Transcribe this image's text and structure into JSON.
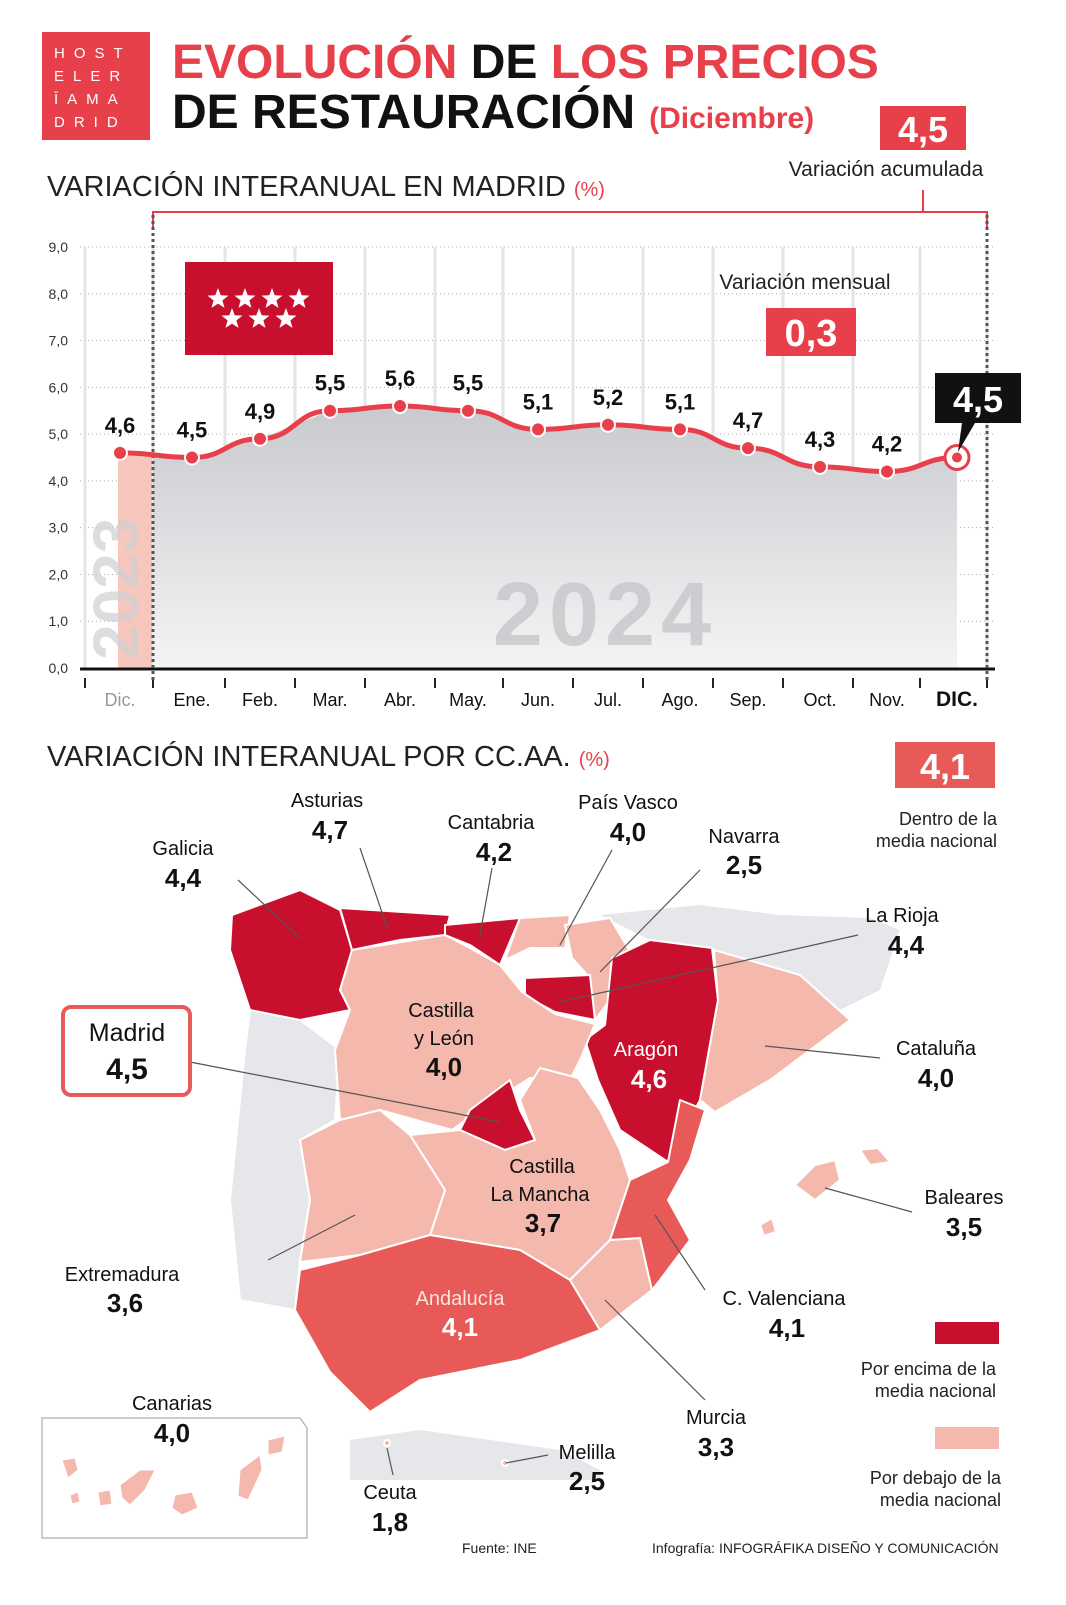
{
  "logo": {
    "lines": [
      "HOST",
      "ELER",
      "ĪAMA",
      "DRID"
    ],
    "brand": "Hostelería Madrid"
  },
  "header": {
    "title_1a": "EVOLUCIÓN",
    "title_1b": "DE",
    "title_1c": "LOS PRECIOS",
    "title_2": "DE RESTAURACIÓN",
    "title_2_sub": "(Diciembre)",
    "accumulated_value": "4,5",
    "accumulated_label": "Variación acumulada"
  },
  "colors": {
    "accent": "#e8404a",
    "above": "#c8102e",
    "within": "#e85a58",
    "below": "#f5b8ad",
    "neutral": "#e6e7ea"
  },
  "madrid_section": {
    "title": "VARIACIÓN INTERANUAL EN MADRID",
    "unit": "(%)",
    "monthly_label": "Variación mensual",
    "monthly_value": "0,3",
    "callout_value": "4,5",
    "watermark_2023": "2023",
    "watermark_2024": "2024",
    "flag_icon": "madrid-flag-seven-stars"
  },
  "chart_data": {
    "type": "line",
    "title": "VARIACIÓN INTERANUAL EN MADRID (%)",
    "categories": [
      "Dic.",
      "Ene.",
      "Feb.",
      "Mar.",
      "Abr.",
      "May.",
      "Jun.",
      "Jul.",
      "Ago.",
      "Sep.",
      "Oct.",
      "Nov.",
      "DIC."
    ],
    "values": [
      4.6,
      4.5,
      4.9,
      5.5,
      5.6,
      5.5,
      5.1,
      5.2,
      5.1,
      4.7,
      4.3,
      4.2,
      4.5
    ],
    "value_labels": [
      "4,6",
      "4,5",
      "4,9",
      "5,5",
      "5,6",
      "5,5",
      "5,1",
      "5,2",
      "5,1",
      "4,7",
      "4,3",
      "4,2",
      "4,5"
    ],
    "yticks": [
      "0,0",
      "1,0",
      "2,0",
      "3,0",
      "4,0",
      "5,0",
      "6,0",
      "7,0",
      "8,0",
      "9,0"
    ],
    "ylim": [
      0,
      9
    ],
    "grid": true
  },
  "regions_section": {
    "title": "VARIACIÓN INTERANUAL POR CC.AA.",
    "unit": "(%)",
    "national_value": "4,1",
    "national_label_1": "Dentro de la",
    "national_label_2": "media nacional",
    "legend_above_1": "Por encima de la",
    "legend_above_2": "media nacional",
    "legend_below_1": "Por debajo de la",
    "legend_below_2": "media nacional",
    "regions": {
      "galicia": {
        "name": "Galicia",
        "value": "4,4",
        "category": "above"
      },
      "asturias": {
        "name": "Asturias",
        "value": "4,7",
        "category": "above"
      },
      "cantabria": {
        "name": "Cantabria",
        "value": "4,2",
        "category": "above"
      },
      "pais_vasco": {
        "name": "País Vasco",
        "value": "4,0",
        "category": "below"
      },
      "navarra": {
        "name": "Navarra",
        "value": "2,5",
        "category": "below"
      },
      "la_rioja": {
        "name": "La Rioja",
        "value": "4,4",
        "category": "above"
      },
      "castilla_leon": {
        "name_1": "Castilla",
        "name_2": "y León",
        "value": "4,0",
        "category": "below"
      },
      "madrid": {
        "name": "Madrid",
        "value": "4,5",
        "category": "above"
      },
      "aragon": {
        "name": "Aragón",
        "value": "4,6",
        "category": "above"
      },
      "cataluna": {
        "name": "Cataluña",
        "value": "4,0",
        "category": "below"
      },
      "castilla_mancha": {
        "name_1": "Castilla",
        "name_2": "La Mancha",
        "value": "3,7",
        "category": "below"
      },
      "baleares": {
        "name": "Baleares",
        "value": "3,5",
        "category": "below"
      },
      "extremadura": {
        "name": "Extremadura",
        "value": "3,6",
        "category": "below"
      },
      "andalucia": {
        "name": "Andalucía",
        "value": "4,1",
        "category": "within"
      },
      "c_valenciana": {
        "name": "C. Valenciana",
        "value": "4,1",
        "category": "within"
      },
      "murcia": {
        "name": "Murcia",
        "value": "3,3",
        "category": "below"
      },
      "canarias": {
        "name": "Canarias",
        "value": "4,0",
        "category": "below"
      },
      "ceuta": {
        "name": "Ceuta",
        "value": "1,8",
        "category": "below"
      },
      "melilla": {
        "name": "Melilla",
        "value": "2,5",
        "category": "below"
      }
    }
  },
  "footer": {
    "source": "Fuente: INE",
    "credit_prefix": "Infografía:",
    "credit": "INFOGRÁFIKA DISEÑO Y COMUNICACIÓN"
  }
}
